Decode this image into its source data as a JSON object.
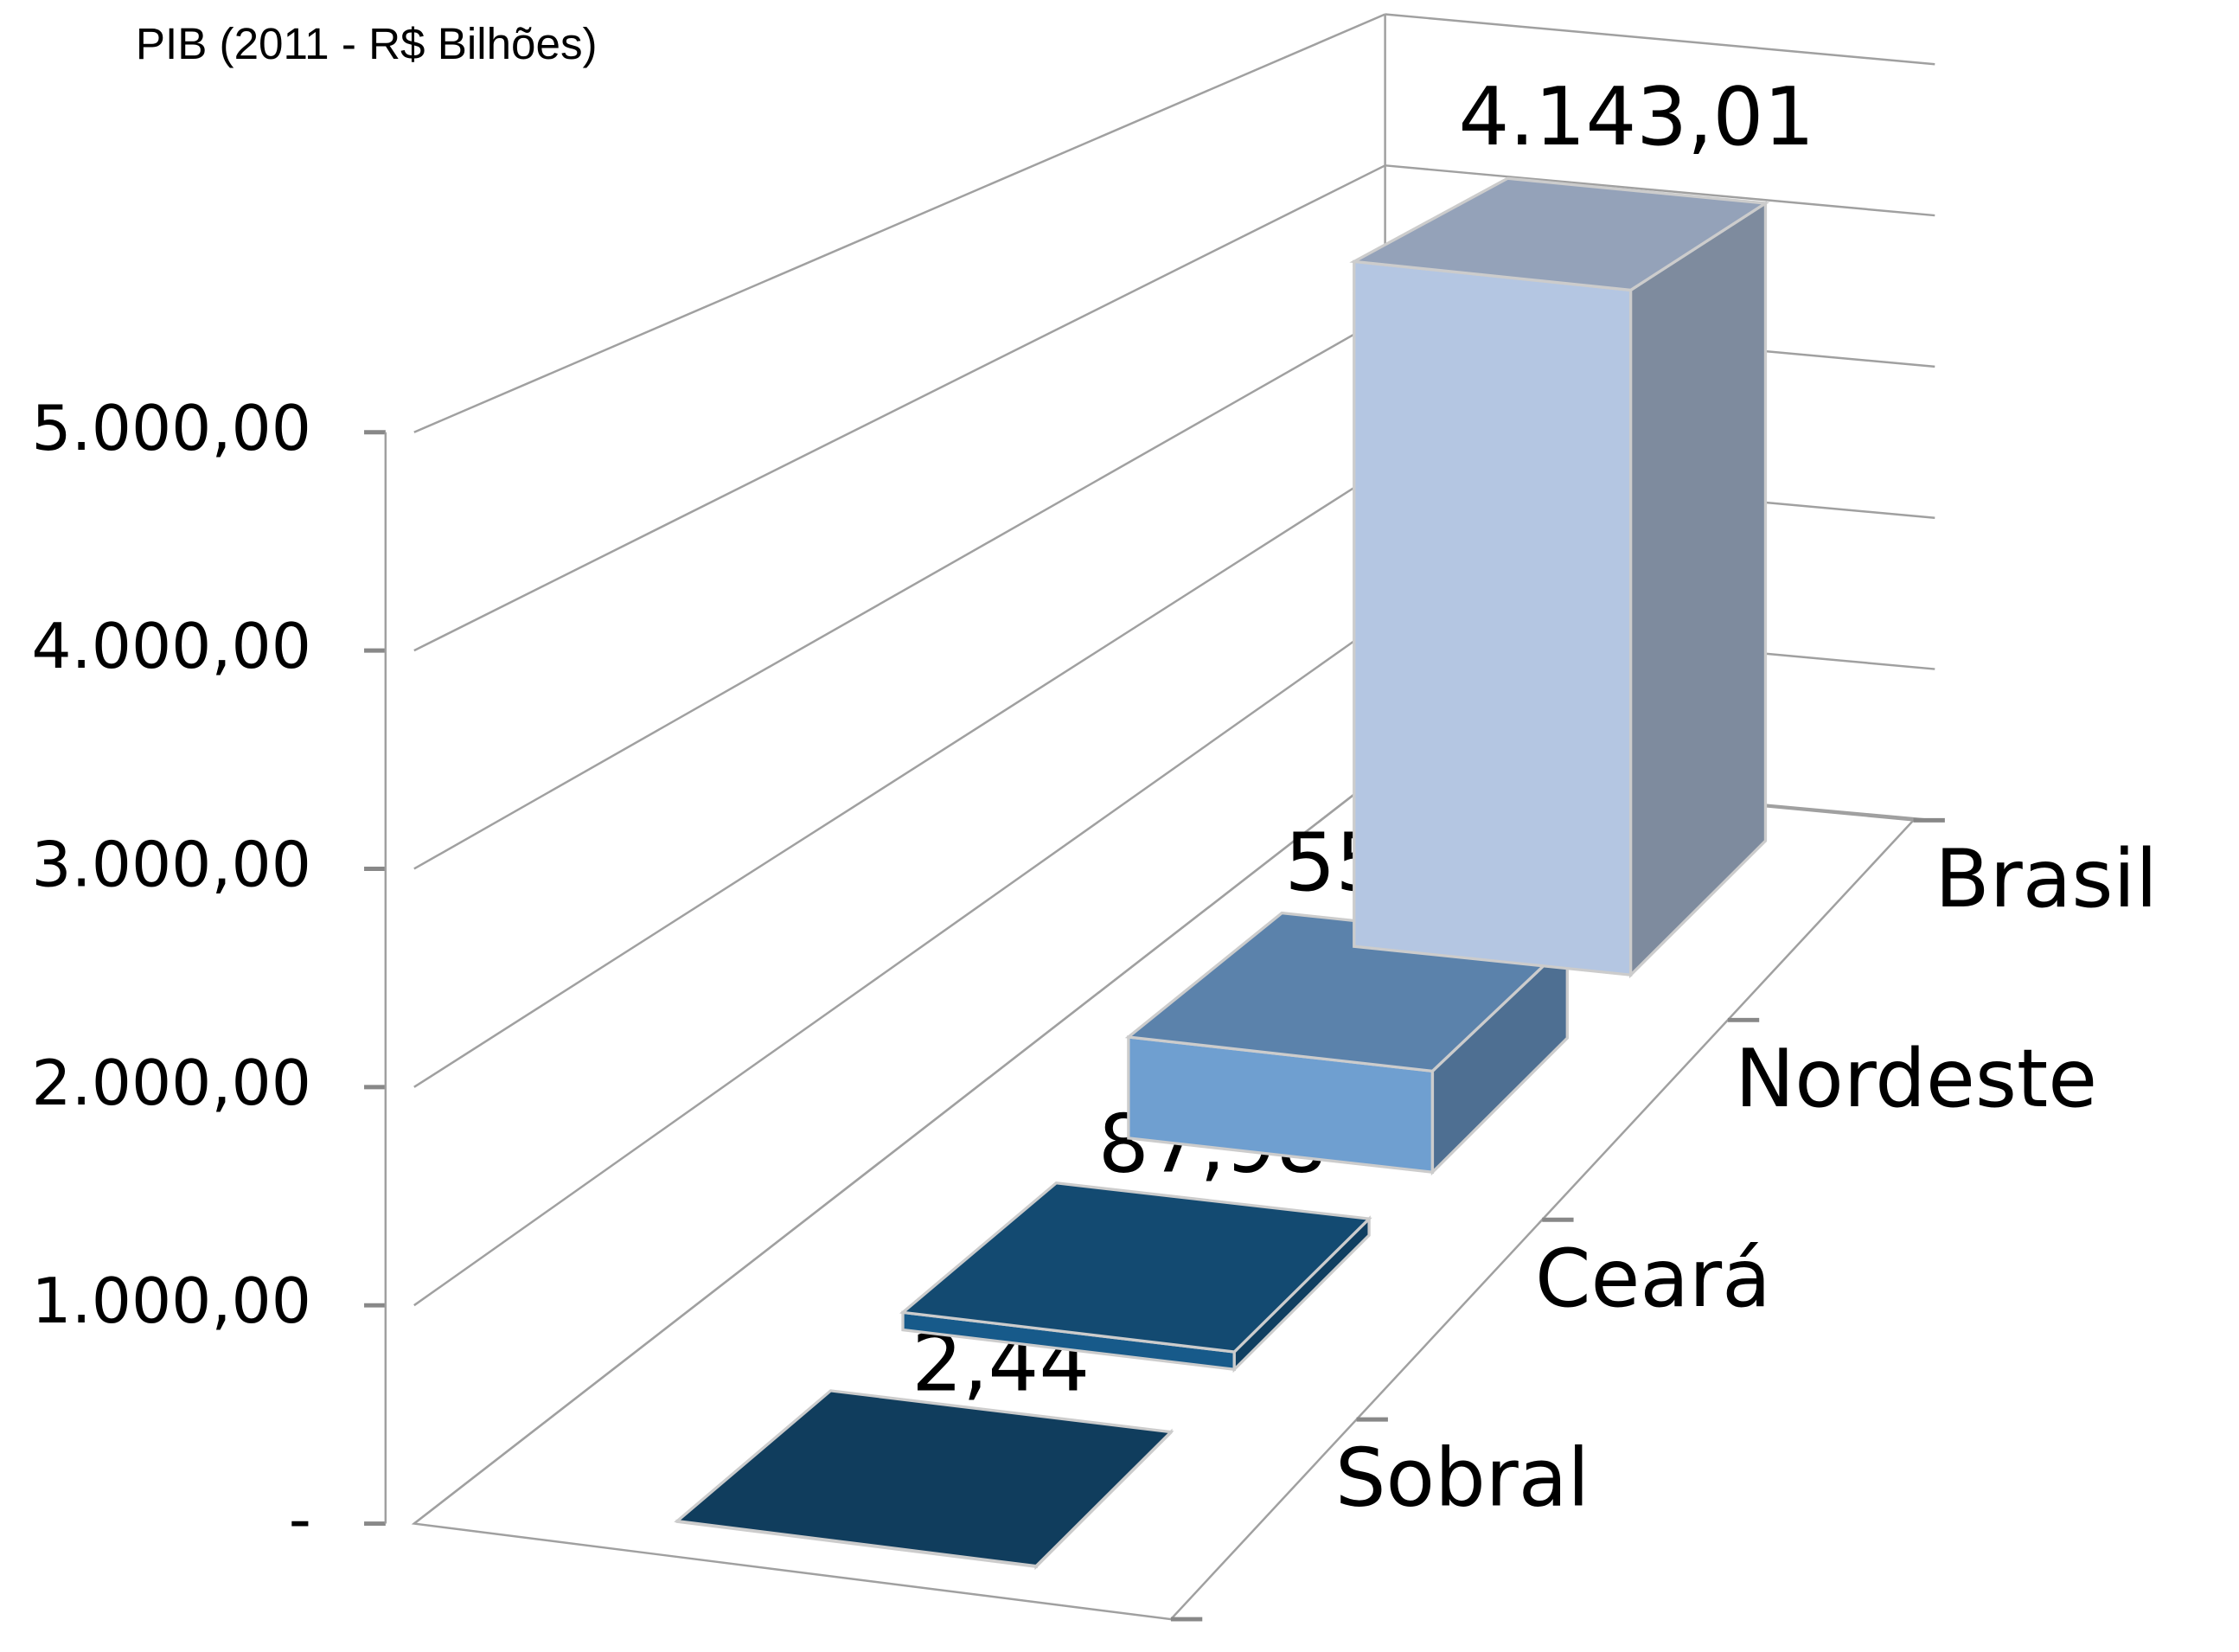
{
  "chart_data": {
    "type": "bar3d",
    "title": "PIB (2011 - R$ Bilhões)",
    "categories": [
      "Sobral",
      "Ceará",
      "Nordeste",
      "Brasil"
    ],
    "values": [
      2.44,
      87.98,
      555.33,
      4143.01
    ],
    "value_labels": [
      "2,44",
      "87,98",
      "555,33",
      "4.143,01"
    ],
    "colors": [
      "#134a72",
      "#175a8a",
      "#6f9fd0",
      "#b4c6e2"
    ],
    "ylim": [
      0,
      5000
    ],
    "yticks": [
      {
        "value": 0,
        "label": "-"
      },
      {
        "value": 1000,
        "label": "1.000,00"
      },
      {
        "value": 2000,
        "label": "2.000,00"
      },
      {
        "value": 3000,
        "label": "3.000,00"
      },
      {
        "value": 4000,
        "label": "4.000,00"
      },
      {
        "value": 5000,
        "label": "5.000,00"
      }
    ],
    "grid": true
  }
}
